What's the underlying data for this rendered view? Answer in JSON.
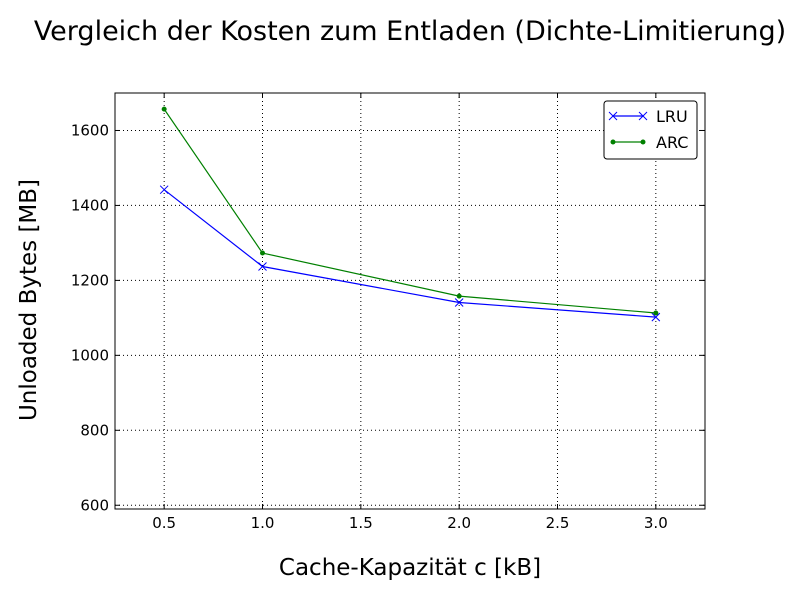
{
  "chart_data": {
    "type": "line",
    "title": "Vergleich der Kosten zum Entladen (Dichte-Limitierung)",
    "xlabel": "Cache-Kapazität c [kB]",
    "ylabel": "Unloaded Bytes [MB]",
    "x": [
      0.5,
      1.0,
      2.0,
      3.0
    ],
    "xlim": [
      0.25,
      3.25
    ],
    "ylim": [
      590,
      1700
    ],
    "xticks": [
      0.5,
      1.0,
      1.5,
      2.0,
      2.5,
      3.0
    ],
    "xtick_labels": [
      "0.5",
      "1.0",
      "1.5",
      "2.0",
      "2.5",
      "3.0"
    ],
    "yticks": [
      600,
      800,
      1000,
      1200,
      1400,
      1600
    ],
    "ytick_labels": [
      "600",
      "800",
      "1000",
      "1200",
      "1400",
      "1600"
    ],
    "grid": true,
    "legend_position": "top-right",
    "series": [
      {
        "name": "LRU",
        "values": [
          1442,
          1237,
          1141,
          1102
        ],
        "color": "#0000ff",
        "marker": "x"
      },
      {
        "name": "ARC",
        "values": [
          1657,
          1273,
          1158,
          1113
        ],
        "color": "#008000",
        "marker": "dot"
      }
    ]
  }
}
